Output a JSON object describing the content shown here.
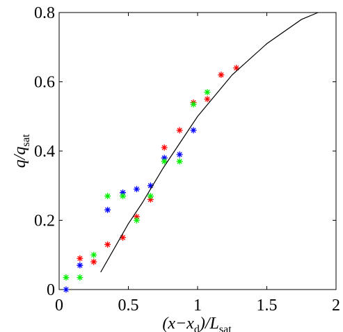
{
  "chart_data": {
    "type": "scatter",
    "x_label_parts": [
      "(x−x",
      "d",
      ")/L",
      "sat"
    ],
    "y_label_parts": [
      "q/q",
      "sat"
    ],
    "xlim": [
      0,
      2
    ],
    "ylim": [
      0,
      0.8
    ],
    "xticks": [
      0,
      0.5,
      1,
      1.5,
      2
    ],
    "yticks": [
      0,
      0.2,
      0.4,
      0.6,
      0.8
    ],
    "series": [
      {
        "mode": "markers",
        "color": "#ff0000",
        "x": [
          0.15,
          0.25,
          0.35,
          0.46,
          0.56,
          0.66,
          0.76,
          0.87,
          0.97,
          1.07,
          1.17,
          1.28
        ],
        "values": [
          0.09,
          0.08,
          0.13,
          0.15,
          0.21,
          0.26,
          0.41,
          0.46,
          0.54,
          0.55,
          0.62,
          0.64
        ]
      },
      {
        "mode": "markers",
        "color": "#0000ff",
        "x": [
          0.05,
          0.15,
          0.35,
          0.46,
          0.56,
          0.66,
          0.76,
          0.87,
          0.97
        ],
        "values": [
          0,
          0.07,
          0.23,
          0.28,
          0.29,
          0.3,
          0.38,
          0.39,
          0.46
        ]
      },
      {
        "mode": "markers",
        "color": "#00ee00",
        "x": [
          0.05,
          0.15,
          0.25,
          0.35,
          0.46,
          0.56,
          0.66,
          0.76,
          0.87,
          0.97,
          1.07
        ],
        "values": [
          0.035,
          0.035,
          0.1,
          0.27,
          0.27,
          0.2,
          0.27,
          0.37,
          0.37,
          0.535,
          0.57
        ]
      },
      {
        "mode": "line",
        "color": "#000000",
        "x": [
          0.3,
          0.4,
          0.5,
          0.6,
          0.75,
          1.0,
          1.25,
          1.5,
          1.75,
          1.87
        ],
        "values": [
          0.05,
          0.12,
          0.19,
          0.25,
          0.35,
          0.5,
          0.62,
          0.71,
          0.78,
          0.8
        ]
      }
    ]
  }
}
